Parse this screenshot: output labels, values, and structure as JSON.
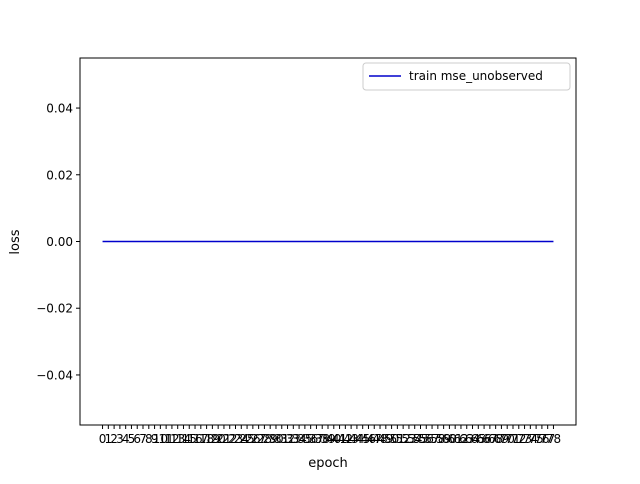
{
  "chart_data": {
    "type": "line",
    "title": "",
    "xlabel": "epoch",
    "ylabel": "loss",
    "x": [
      0,
      1,
      2,
      3,
      4,
      5,
      6,
      7,
      8,
      9,
      10,
      11,
      12,
      13,
      14,
      15,
      16,
      17,
      18,
      19,
      20,
      21,
      22,
      23,
      24,
      25,
      26,
      27,
      28,
      29,
      30,
      31,
      32,
      33,
      34,
      35,
      36,
      37,
      38,
      39,
      40,
      41,
      42,
      43,
      44,
      45,
      46,
      47,
      48,
      49,
      50,
      51,
      52,
      53,
      54,
      55,
      56,
      57,
      58,
      59,
      60,
      61,
      62,
      63,
      64,
      65,
      66,
      67,
      68,
      69,
      70,
      71,
      72,
      73,
      74,
      75,
      76,
      77,
      78
    ],
    "xlim": [
      -3.9,
      81.9
    ],
    "ylim": [
      -0.055,
      0.055
    ],
    "yticks": [
      -0.04,
      -0.02,
      0.0,
      0.02,
      0.04
    ],
    "ytick_labels": [
      "−0.04",
      "−0.02",
      "0.00",
      "0.02",
      "0.04"
    ],
    "grid": false,
    "legend_position": "top-right",
    "series": [
      {
        "name": "train mse_unobserved",
        "color": "#0000cc",
        "values": [
          0,
          0,
          0,
          0,
          0,
          0,
          0,
          0,
          0,
          0,
          0,
          0,
          0,
          0,
          0,
          0,
          0,
          0,
          0,
          0,
          0,
          0,
          0,
          0,
          0,
          0,
          0,
          0,
          0,
          0,
          0,
          0,
          0,
          0,
          0,
          0,
          0,
          0,
          0,
          0,
          0,
          0,
          0,
          0,
          0,
          0,
          0,
          0,
          0,
          0,
          0,
          0,
          0,
          0,
          0,
          0,
          0,
          0,
          0,
          0,
          0,
          0,
          0,
          0,
          0,
          0,
          0,
          0,
          0,
          0,
          0,
          0,
          0,
          0,
          0,
          0,
          0,
          0,
          0
        ]
      }
    ]
  }
}
